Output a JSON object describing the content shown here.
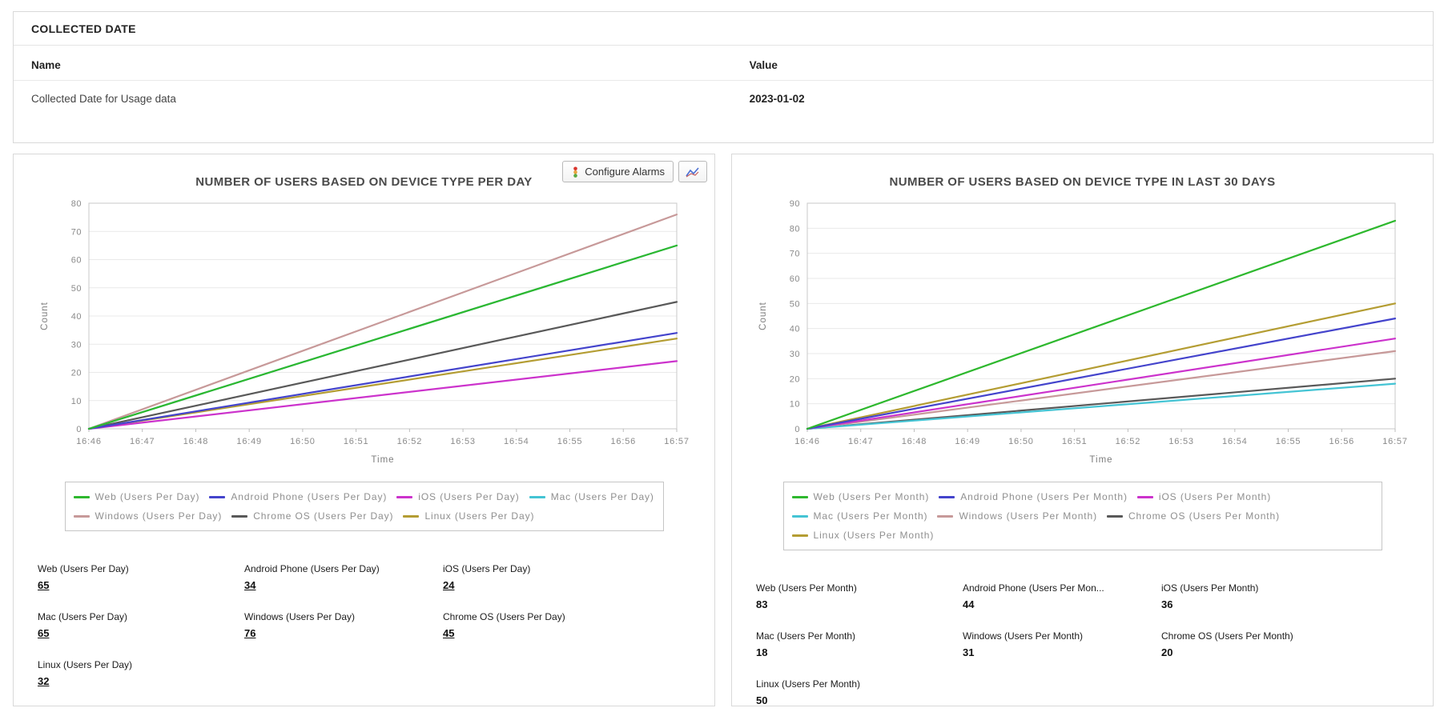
{
  "collected_date_panel": {
    "title": "COLLECTED DATE",
    "columns": {
      "name": "Name",
      "value": "Value"
    },
    "rows": [
      {
        "name": "Collected Date for Usage data",
        "value": "2023-01-02"
      }
    ]
  },
  "toolbar": {
    "configure_alarms_label": "Configure Alarms"
  },
  "panels": [
    {
      "values_underlined": true,
      "stats": [
        {
          "label": "Web (Users Per Day)",
          "value": "65"
        },
        {
          "label": "Android Phone (Users Per Day)",
          "value": "34"
        },
        {
          "label": "iOS (Users Per Day)",
          "value": "24"
        },
        {
          "label": "Mac (Users Per Day)",
          "value": "65"
        },
        {
          "label": "Windows (Users Per Day)",
          "value": "76"
        },
        {
          "label": "Chrome OS (Users Per Day)",
          "value": "45"
        },
        {
          "label": "Linux (Users Per Day)",
          "value": "32"
        }
      ]
    },
    {
      "values_underlined": false,
      "stats": [
        {
          "label": "Web (Users Per Month)",
          "value": "83"
        },
        {
          "label": "Android Phone (Users Per Mon...",
          "value": "44"
        },
        {
          "label": "iOS (Users Per Month)",
          "value": "36"
        },
        {
          "label": "Mac (Users Per Month)",
          "value": "18"
        },
        {
          "label": "Windows (Users Per Month)",
          "value": "31"
        },
        {
          "label": "Chrome OS (Users Per Month)",
          "value": "20"
        },
        {
          "label": "Linux (Users Per Month)",
          "value": "50"
        }
      ]
    }
  ],
  "chart_data": [
    {
      "type": "line",
      "title": "NUMBER OF USERS BASED ON DEVICE TYPE PER DAY",
      "xlabel": "Time",
      "ylabel": "Count",
      "x_ticks": [
        "16:46",
        "16:47",
        "16:48",
        "16:49",
        "16:50",
        "16:51",
        "16:52",
        "16:53",
        "16:54",
        "16:55",
        "16:56",
        "16:57"
      ],
      "ylim": [
        0,
        80
      ],
      "y_tick_step": 10,
      "grid": "horizontal",
      "legend_position": "bottom",
      "series": [
        {
          "name": "Web (Users Per Day)",
          "color": "#2eb82e",
          "start": 0,
          "end": 65
        },
        {
          "name": "Android Phone (Users Per Day)",
          "color": "#4444cc",
          "start": 0,
          "end": 34
        },
        {
          "name": "iOS (Users Per Day)",
          "color": "#cc33cc",
          "start": 0,
          "end": 24
        },
        {
          "name": "Mac (Users Per Day)",
          "color": "#44c4d4",
          "start": 0,
          "end": 65
        },
        {
          "name": "Windows (Users Per Day)",
          "color": "#c79999",
          "start": 0,
          "end": 76
        },
        {
          "name": "Chrome OS (Users Per Day)",
          "color": "#595959",
          "start": 0,
          "end": 45
        },
        {
          "name": "Linux (Users Per Day)",
          "color": "#b49d33",
          "start": 0,
          "end": 32
        }
      ]
    },
    {
      "type": "line",
      "title": "NUMBER OF USERS BASED ON DEVICE TYPE IN LAST 30 DAYS",
      "xlabel": "Time",
      "ylabel": "Count",
      "x_ticks": [
        "16:46",
        "16:47",
        "16:48",
        "16:49",
        "16:50",
        "16:51",
        "16:52",
        "16:53",
        "16:54",
        "16:55",
        "16:56",
        "16:57"
      ],
      "ylim": [
        0,
        90
      ],
      "y_tick_step": 10,
      "grid": "horizontal",
      "legend_position": "bottom",
      "series": [
        {
          "name": "Web (Users Per Month)",
          "color": "#2eb82e",
          "start": 0,
          "end": 83
        },
        {
          "name": "Android Phone (Users Per Month)",
          "color": "#4444cc",
          "start": 0,
          "end": 44
        },
        {
          "name": "iOS (Users Per Month)",
          "color": "#cc33cc",
          "start": 0,
          "end": 36
        },
        {
          "name": "Mac (Users Per Month)",
          "color": "#44c4d4",
          "start": 0,
          "end": 18
        },
        {
          "name": "Windows (Users Per Month)",
          "color": "#c79999",
          "start": 0,
          "end": 31
        },
        {
          "name": "Chrome OS (Users Per Month)",
          "color": "#595959",
          "start": 0,
          "end": 20
        },
        {
          "name": "Linux (Users Per Month)",
          "color": "#b49d33",
          "start": 0,
          "end": 50
        }
      ]
    }
  ]
}
